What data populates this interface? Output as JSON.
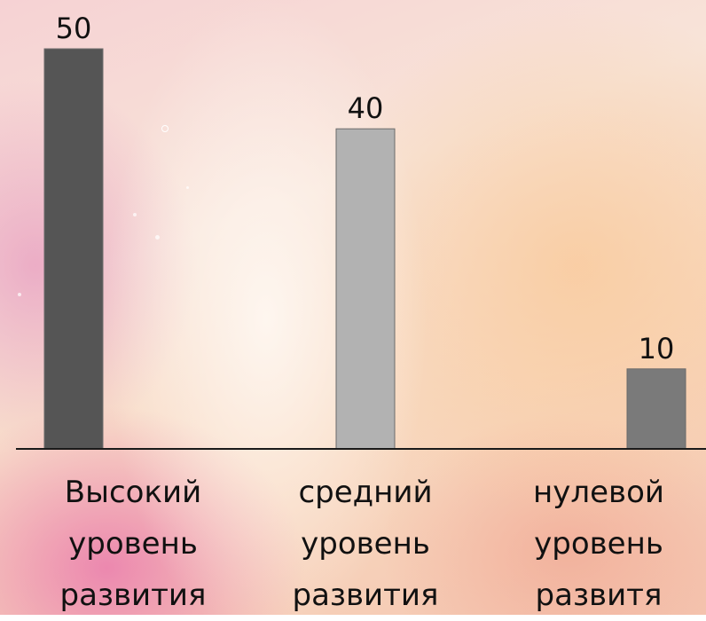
{
  "chart_data": {
    "type": "bar",
    "categories": [
      [
        "Высокий",
        "уровень",
        "развития"
      ],
      [
        "средний",
        "уровень",
        "развития"
      ],
      [
        "нулевой",
        "уровень",
        "развитя"
      ]
    ],
    "values": [
      50,
      40,
      10
    ],
    "value_labels": [
      "50",
      "40",
      "10"
    ],
    "bar_colors": [
      "#555555",
      "#b2b2b2",
      "#7a7a7a"
    ],
    "ylim": [
      0,
      50
    ],
    "grid": false,
    "legend": "none"
  }
}
